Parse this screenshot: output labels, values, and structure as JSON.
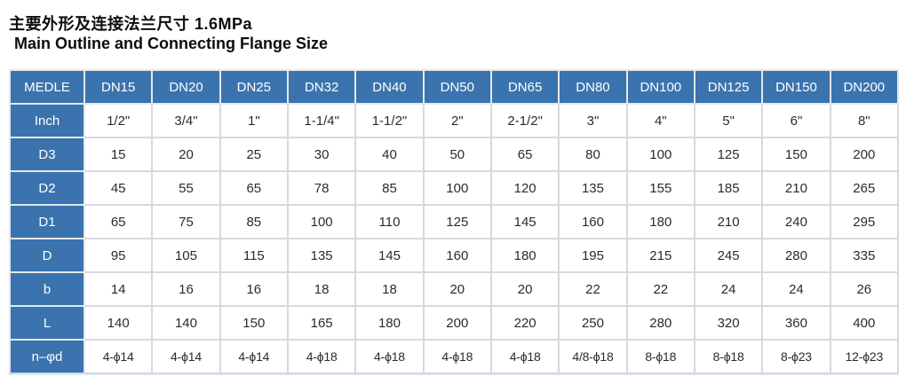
{
  "header": {
    "title_cn": "主要外形及连接法兰尺寸 1.6MPa",
    "title_en": "Main Outline and Connecting Flange Size"
  },
  "colors": {
    "accent_blue": "#3a73ae",
    "grid_line": "#d9d9d9",
    "header_text": "#ffffff",
    "cell_text": "#2b2b2b"
  },
  "table": {
    "corner": "MEDLE",
    "columns": [
      "DN15",
      "DN20",
      "DN25",
      "DN32",
      "DN40",
      "DN50",
      "DN65",
      "DN80",
      "DN100",
      "DN125",
      "DN150",
      "DN200"
    ],
    "rows": [
      {
        "label": "Inch",
        "values": [
          "1/2\"",
          "3/4\"",
          "1\"",
          "1-1/4\"",
          "1-1/2\"",
          "2\"",
          "2-1/2\"",
          "3\"",
          "4\"",
          "5\"",
          "6\"",
          "8\""
        ]
      },
      {
        "label": "D3",
        "values": [
          "15",
          "20",
          "25",
          "30",
          "40",
          "50",
          "65",
          "80",
          "100",
          "125",
          "150",
          "200"
        ]
      },
      {
        "label": "D2",
        "values": [
          "45",
          "55",
          "65",
          "78",
          "85",
          "100",
          "120",
          "135",
          "155",
          "185",
          "210",
          "265"
        ]
      },
      {
        "label": "D1",
        "values": [
          "65",
          "75",
          "85",
          "100",
          "110",
          "125",
          "145",
          "160",
          "180",
          "210",
          "240",
          "295"
        ]
      },
      {
        "label": "D",
        "values": [
          "95",
          "105",
          "115",
          "135",
          "145",
          "160",
          "180",
          "195",
          "215",
          "245",
          "280",
          "335"
        ]
      },
      {
        "label": "b",
        "values": [
          "14",
          "16",
          "16",
          "18",
          "18",
          "20",
          "20",
          "22",
          "22",
          "24",
          "24",
          "26"
        ]
      },
      {
        "label": "L",
        "values": [
          "140",
          "140",
          "150",
          "165",
          "180",
          "200",
          "220",
          "250",
          "280",
          "320",
          "360",
          "400"
        ]
      },
      {
        "label": "n–φd",
        "values": [
          "4-ϕ14",
          "4-ϕ14",
          "4-ϕ14",
          "4-ϕ18",
          "4-ϕ18",
          "4-ϕ18",
          "4-ϕ18",
          "4/8-ϕ18",
          "8-ϕ18",
          "8-ϕ18",
          "8-ϕ23",
          "12-ϕ23"
        ]
      }
    ]
  }
}
